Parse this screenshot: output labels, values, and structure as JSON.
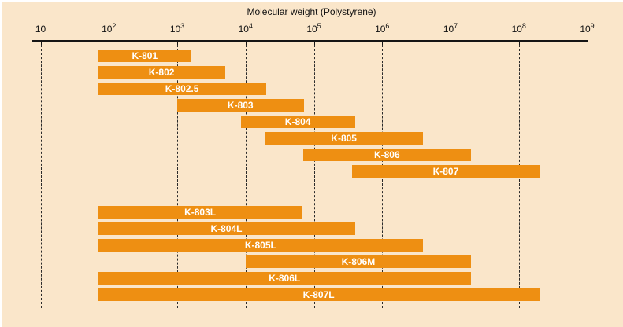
{
  "chart_data": {
    "type": "bar",
    "orientation": "horizontal-range",
    "title": "Molecular weight (Polystyrene)",
    "x_axis": {
      "scale": "log10",
      "min": 10,
      "max": 1000000000,
      "min_exponent": 1,
      "max_exponent": 9,
      "ticks": [
        {
          "base": "10",
          "sup": ""
        },
        {
          "base": "10",
          "sup": "2"
        },
        {
          "base": "10",
          "sup": "3"
        },
        {
          "base": "10",
          "sup": "4"
        },
        {
          "base": "10",
          "sup": "5"
        },
        {
          "base": "10",
          "sup": "6"
        },
        {
          "base": "10",
          "sup": "7"
        },
        {
          "base": "10",
          "sup": "8"
        },
        {
          "base": "10",
          "sup": "9"
        }
      ]
    },
    "grid": "dashed-vertical",
    "legend": "none",
    "colors": {
      "bar": "#EE8F12",
      "bar_label": "#FFFFFF",
      "background": "#FAE6CA",
      "axis": "#151515"
    },
    "bars_top": [
      {
        "label": "K-801",
        "log_start": 1.84,
        "log_end": 3.21,
        "mw_min": "7×10¹",
        "mw_max": "1.6×10³"
      },
      {
        "label": "K-802",
        "log_start": 1.84,
        "log_end": 3.7,
        "mw_min": "7×10¹",
        "mw_max": "5×10³"
      },
      {
        "label": "K-802.5",
        "log_start": 1.84,
        "log_end": 4.3,
        "mw_min": "7×10¹",
        "mw_max": "2×10⁴"
      },
      {
        "label": "K-803",
        "log_start": 3.0,
        "log_end": 4.85,
        "mw_min": "1×10³",
        "mw_max": "7×10⁴"
      },
      {
        "label": "K-804",
        "log_start": 3.93,
        "log_end": 5.6,
        "mw_min": "9×10³",
        "mw_max": "4×10⁵"
      },
      {
        "label": "K-805",
        "log_start": 4.28,
        "log_end": 6.6,
        "mw_min": "2×10⁴",
        "mw_max": "4×10⁶"
      },
      {
        "label": "K-806",
        "log_start": 4.84,
        "log_end": 7.3,
        "mw_min": "7×10⁴",
        "mw_max": "2×10⁷"
      },
      {
        "label": "K-807",
        "log_start": 5.56,
        "log_end": 8.3,
        "mw_min": "4×10⁵",
        "mw_max": "2×10⁸"
      }
    ],
    "bars_bottom": [
      {
        "label": "K-803L",
        "log_start": 1.84,
        "log_end": 4.83,
        "mw_min": "7×10¹",
        "mw_max": "7×10⁴"
      },
      {
        "label": "K-804L",
        "log_start": 1.84,
        "log_end": 5.6,
        "mw_min": "7×10¹",
        "mw_max": "4×10⁵"
      },
      {
        "label": "K-805L",
        "log_start": 1.84,
        "log_end": 6.6,
        "mw_min": "7×10¹",
        "mw_max": "4×10⁶"
      },
      {
        "label": "K-806M",
        "log_start": 4.0,
        "log_end": 7.3,
        "mw_min": "1×10⁴",
        "mw_max": "2×10⁷"
      },
      {
        "label": "K-806L",
        "log_start": 1.84,
        "log_end": 7.3,
        "mw_min": "7×10¹",
        "mw_max": "2×10⁷"
      },
      {
        "label": "K-807L",
        "log_start": 1.84,
        "log_end": 8.3,
        "mw_min": "7×10¹",
        "mw_max": "2×10⁸"
      }
    ]
  }
}
